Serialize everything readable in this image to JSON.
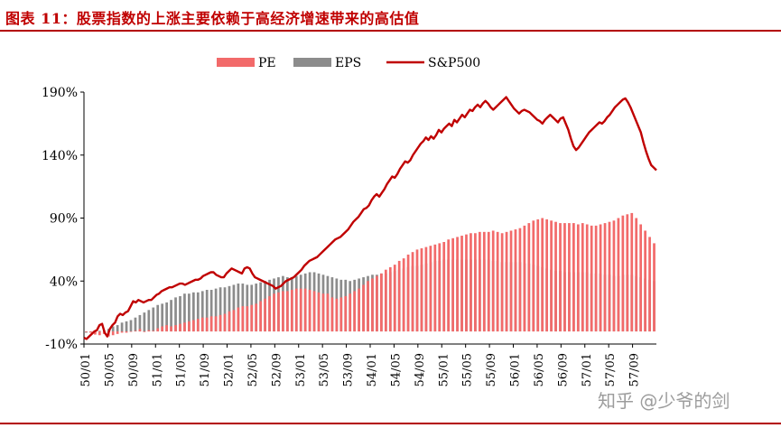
{
  "header": {
    "title": "图表 11：股票指数的上涨主要依赖于高经济增速带来的高估值"
  },
  "watermark": "知乎 @少爷的剑",
  "colors": {
    "pe": "#f26a6a",
    "eps": "#8c8c8c",
    "sp500": "#c00000",
    "title": "#c00000"
  },
  "chart_data": {
    "type": "bar",
    "title": "",
    "xlabel": "",
    "ylabel": "",
    "ylim": [
      -10,
      200
    ],
    "yticks": [
      "190%",
      "140%",
      "90%",
      "40%",
      "-10%"
    ],
    "ytick_values": [
      190,
      140,
      90,
      40,
      -10
    ],
    "xtick_labels": [
      "50/01",
      "50/05",
      "50/09",
      "51/01",
      "51/05",
      "51/09",
      "52/01",
      "52/05",
      "52/09",
      "53/01",
      "53/05",
      "53/09",
      "54/01",
      "54/05",
      "54/09",
      "55/01",
      "55/05",
      "55/09",
      "56/01",
      "56/05",
      "56/09",
      "57/01",
      "57/05",
      "57/09"
    ],
    "legend": {
      "placement": "top-center",
      "entries": [
        "PE",
        "EPS",
        "S&P500"
      ]
    },
    "grid": false,
    "series": [
      {
        "name": "PE",
        "type": "bar",
        "values": [
          -0.5,
          -1,
          -2.5,
          -3,
          -2,
          -4,
          -3,
          -2,
          -1,
          -1,
          0,
          0.5,
          2,
          -0.5,
          1,
          0.5,
          2.5,
          4,
          5,
          4,
          5,
          6,
          7,
          8,
          9,
          10,
          11,
          11,
          12,
          12,
          13,
          14,
          16,
          17,
          19,
          20,
          20,
          21,
          22,
          24,
          26,
          28,
          30,
          31,
          32,
          32,
          33,
          34,
          34,
          34,
          33,
          32,
          31,
          30,
          30,
          27,
          26,
          27,
          28,
          30,
          32,
          34,
          37,
          40,
          42,
          44,
          46,
          49,
          51,
          53,
          56,
          58,
          61,
          63,
          65,
          66,
          67,
          68,
          69,
          70,
          71,
          73,
          74,
          75,
          76,
          77,
          78,
          78,
          79,
          79,
          79,
          80,
          79,
          78,
          79,
          80,
          81,
          82,
          84,
          86,
          88,
          89,
          90,
          89,
          88,
          87,
          86,
          86,
          86,
          86,
          85,
          86,
          85,
          84,
          84,
          85,
          86,
          87,
          88,
          90,
          92,
          93,
          94,
          90,
          85,
          80,
          75,
          70
        ]
      },
      {
        "name": "EPS",
        "type": "bar",
        "values": [
          -1,
          -0.5,
          0,
          0.5,
          1,
          2,
          4,
          5,
          7,
          8,
          9,
          11,
          13,
          15,
          17,
          19,
          21,
          22,
          23,
          25,
          27,
          28,
          30,
          30,
          31,
          31,
          32,
          33,
          33,
          34,
          35,
          35,
          36,
          37,
          38,
          38,
          37,
          37,
          38,
          39,
          40,
          41,
          42,
          43,
          44,
          43,
          43,
          44,
          45,
          46,
          47,
          47,
          46,
          45,
          44,
          43,
          42,
          41,
          41,
          40,
          41,
          42,
          43,
          44,
          45,
          45,
          46,
          46,
          47,
          48,
          49,
          50,
          51,
          52,
          52,
          53,
          54,
          55,
          56,
          56,
          57,
          57,
          57,
          57,
          57,
          57,
          57,
          57,
          57,
          57,
          57,
          56,
          56,
          55,
          55,
          55,
          55,
          55,
          54,
          54,
          53,
          52,
          51,
          50,
          49,
          48,
          48,
          47,
          47,
          47,
          47,
          47,
          47,
          46,
          46,
          46,
          45,
          45,
          44,
          44,
          45,
          45,
          45,
          44,
          43,
          42,
          41,
          40
        ]
      },
      {
        "name": "S&P500",
        "type": "line",
        "values": [
          -5,
          -6,
          -4,
          -2,
          0,
          1,
          5,
          6,
          -1,
          -4,
          2,
          5,
          7,
          12,
          14,
          13,
          15,
          16,
          20,
          24,
          23,
          25,
          24,
          23,
          24,
          25,
          25,
          27,
          29,
          30,
          32,
          33,
          34,
          35,
          35,
          36,
          37,
          38,
          38,
          37,
          38,
          39,
          40,
          41,
          41,
          42,
          44,
          45,
          46,
          47,
          47,
          45,
          44,
          43,
          43,
          46,
          48,
          50,
          49,
          48,
          47,
          46,
          50,
          51,
          50,
          46,
          43,
          42,
          41,
          40,
          39,
          38,
          37,
          36,
          34,
          35,
          36,
          38,
          40,
          41,
          42,
          43,
          45,
          47,
          49,
          52,
          54,
          56,
          57,
          58,
          59,
          61,
          63,
          65,
          67,
          69,
          71,
          73,
          74,
          75,
          77,
          79,
          81,
          84,
          87,
          89,
          91,
          94,
          97,
          98,
          100,
          104,
          107,
          109,
          107,
          110,
          113,
          117,
          120,
          123,
          122,
          125,
          129,
          132,
          135,
          134,
          136,
          140,
          143,
          146,
          149,
          151,
          154,
          152,
          155,
          153,
          156,
          160,
          158,
          161,
          163,
          165,
          163,
          168,
          166,
          169,
          172,
          170,
          173,
          176,
          175,
          178,
          180,
          178,
          181,
          183,
          181,
          178,
          176,
          178,
          180,
          182,
          184,
          186,
          183,
          180,
          177,
          175,
          173,
          175,
          176,
          175,
          174,
          172,
          170,
          168,
          167,
          165,
          168,
          170,
          172,
          170,
          168,
          166,
          169,
          170,
          165,
          160,
          153,
          147,
          144,
          146,
          149,
          152,
          155,
          158,
          160,
          162,
          164,
          166,
          165,
          167,
          170,
          172,
          175,
          178,
          180,
          182,
          184,
          185,
          182,
          178,
          173,
          168,
          163,
          158,
          150,
          143,
          137,
          132,
          130,
          128
        ]
      }
    ]
  }
}
